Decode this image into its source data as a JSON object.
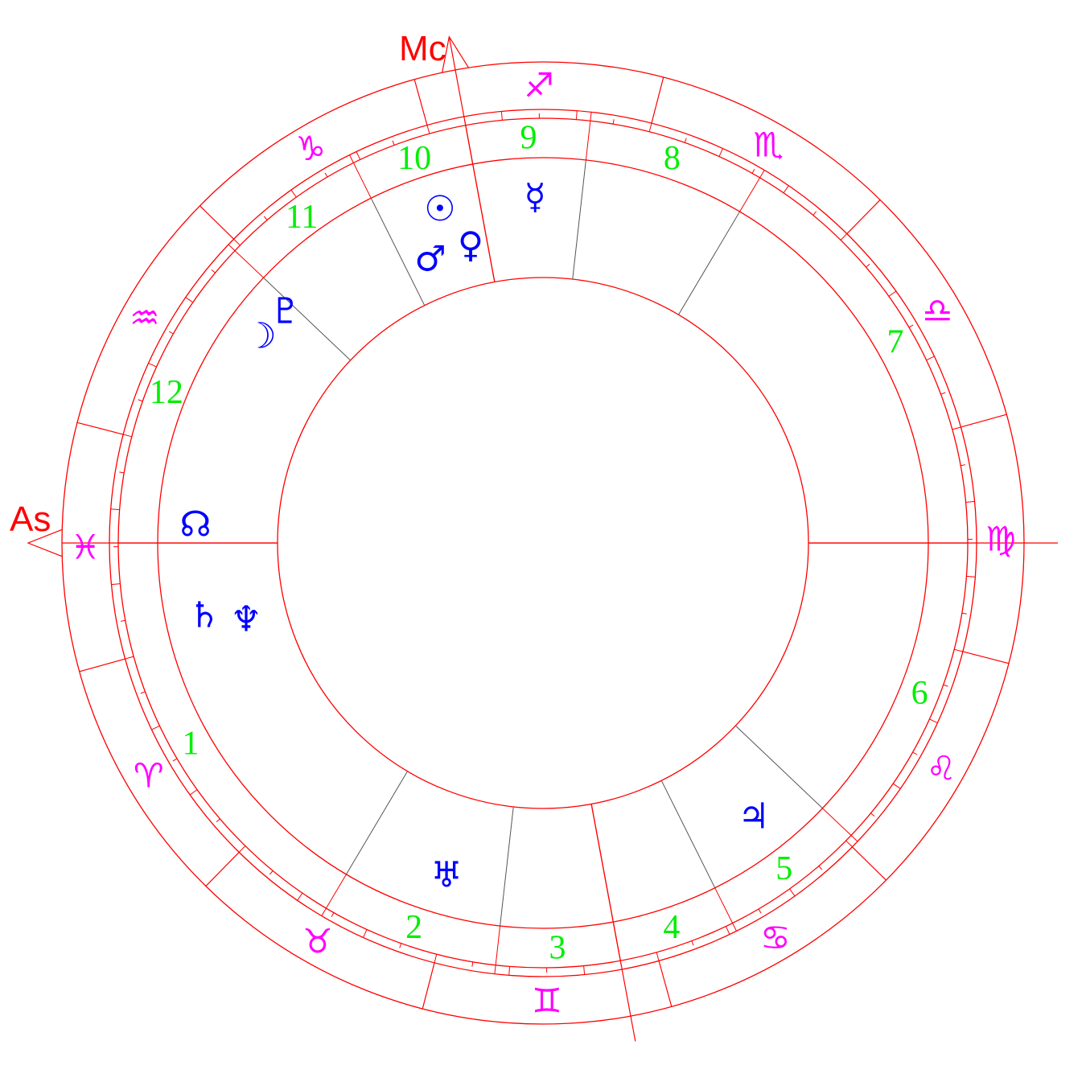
{
  "chart": {
    "ascendant_label": "As",
    "midheaven_label": "Mc",
    "ascendant_longitude": 344.5,
    "midheaven_longitude": 265,
    "colors": {
      "ring": "#ff0000",
      "sign": "#ff00ff",
      "house_number": "#00ee00",
      "planet": "#0000ff",
      "cusp": "#555555"
    },
    "signs": [
      {
        "name": "aries",
        "glyph": "♈︎"
      },
      {
        "name": "taurus",
        "glyph": "♉︎"
      },
      {
        "name": "gemini",
        "glyph": "♊︎"
      },
      {
        "name": "cancer",
        "glyph": "♋︎"
      },
      {
        "name": "leo",
        "glyph": "♌︎"
      },
      {
        "name": "virgo",
        "glyph": "♍︎"
      },
      {
        "name": "libra",
        "glyph": "♎︎"
      },
      {
        "name": "scorpio",
        "glyph": "♏︎"
      },
      {
        "name": "sagittarius",
        "glyph": "♐︎"
      },
      {
        "name": "capricorn",
        "glyph": "♑︎"
      },
      {
        "name": "aquarius",
        "glyph": "♒︎"
      },
      {
        "name": "pisces",
        "glyph": "♓︎"
      }
    ],
    "houses": [
      {
        "number": "1",
        "cusp": 344.5
      },
      {
        "number": "2",
        "cusp": 43.8
      },
      {
        "number": "3",
        "cusp": 68.1
      },
      {
        "number": "4",
        "cusp": 85
      },
      {
        "number": "5",
        "cusp": 101
      },
      {
        "number": "6",
        "cusp": 121
      },
      {
        "number": "7",
        "cusp": 164.5
      },
      {
        "number": "8",
        "cusp": 223.8
      },
      {
        "number": "9",
        "cusp": 248.1
      },
      {
        "number": "10",
        "cusp": 265
      },
      {
        "number": "11",
        "cusp": 281
      },
      {
        "number": "12",
        "cusp": 301
      }
    ],
    "planets": [
      {
        "name": "sun",
        "glyph": "☉"
      },
      {
        "name": "mars",
        "glyph": "♂"
      },
      {
        "name": "venus",
        "glyph": "♀"
      },
      {
        "name": "mercury",
        "glyph": "☿"
      },
      {
        "name": "moon",
        "glyph": "☽"
      },
      {
        "name": "pluto",
        "glyph": "♇"
      },
      {
        "name": "north-node",
        "glyph": "☊"
      },
      {
        "name": "saturn",
        "glyph": "♄"
      },
      {
        "name": "neptune",
        "glyph": "♆"
      },
      {
        "name": "jupiter",
        "glyph": "♃"
      },
      {
        "name": "uranus",
        "glyph": "♅"
      }
    ]
  }
}
